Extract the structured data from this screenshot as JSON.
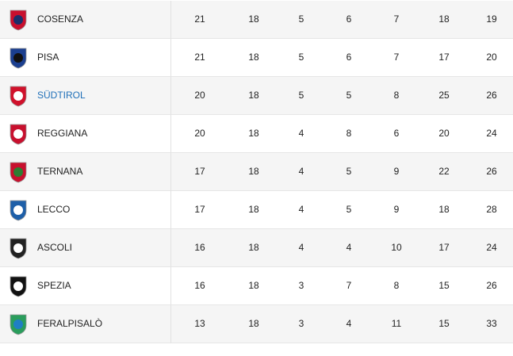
{
  "table": {
    "rows": [
      [
        "COSENZA",
        21,
        18,
        5,
        6,
        7,
        18,
        19
      ],
      [
        "PISA",
        21,
        18,
        5,
        6,
        7,
        17,
        20
      ],
      [
        "SÜDTIROL",
        20,
        18,
        5,
        5,
        8,
        25,
        26
      ],
      [
        "REGGIANA",
        20,
        18,
        4,
        8,
        6,
        20,
        24
      ],
      [
        "TERNANA",
        17,
        18,
        4,
        5,
        9,
        22,
        26
      ],
      [
        "LECCO",
        17,
        18,
        4,
        5,
        9,
        18,
        28
      ],
      [
        "ASCOLI",
        16,
        18,
        4,
        4,
        10,
        17,
        24
      ],
      [
        "SPEZIA",
        16,
        18,
        3,
        7,
        8,
        15,
        26
      ],
      [
        "FERALPISALÒ",
        13,
        18,
        3,
        4,
        11,
        15,
        33
      ]
    ]
  }
}
